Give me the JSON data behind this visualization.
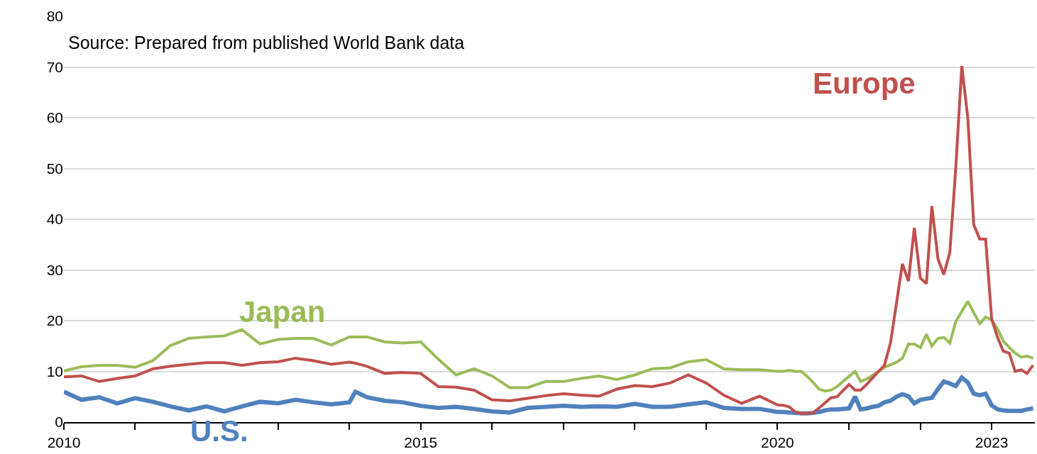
{
  "chart_data": {
    "type": "line",
    "annotations": [
      "Source: Prepared from published World Bank data"
    ],
    "x": [
      "2010-01",
      "2010-04",
      "2010-07",
      "2010-10",
      "2011-01",
      "2011-04",
      "2011-07",
      "2011-10",
      "2012-01",
      "2012-04",
      "2012-07",
      "2012-10",
      "2013-01",
      "2013-04",
      "2013-07",
      "2013-10",
      "2014-01",
      "2014-02",
      "2014-04",
      "2014-07",
      "2014-10",
      "2015-01",
      "2015-04",
      "2015-07",
      "2015-10",
      "2016-01",
      "2016-04",
      "2016-07",
      "2016-10",
      "2017-01",
      "2017-04",
      "2017-07",
      "2017-10",
      "2018-01",
      "2018-04",
      "2018-07",
      "2018-10",
      "2019-01",
      "2019-04",
      "2019-07",
      "2019-10",
      "2020-01",
      "2020-02",
      "2020-03",
      "2020-04",
      "2020-05",
      "2020-06",
      "2020-07",
      "2020-08",
      "2020-09",
      "2020-10",
      "2020-11",
      "2020-12",
      "2021-01",
      "2021-02",
      "2021-03",
      "2021-04",
      "2021-05",
      "2021-06",
      "2021-07",
      "2021-08",
      "2021-09",
      "2021-10",
      "2021-11",
      "2021-12",
      "2022-01",
      "2022-02",
      "2022-03",
      "2022-04",
      "2022-05",
      "2022-06",
      "2022-07",
      "2022-08",
      "2022-09",
      "2022-10",
      "2022-11",
      "2022-12",
      "2023-01",
      "2023-02",
      "2023-03",
      "2023-04",
      "2023-05",
      "2023-06",
      "2023-07",
      "2023-08"
    ],
    "series": [
      {
        "name": "U.S.",
        "color": "#4f81bd",
        "values": [
          6.0,
          4.4,
          4.9,
          3.7,
          4.7,
          4.0,
          3.1,
          2.3,
          3.1,
          2.1,
          3.1,
          4.0,
          3.7,
          4.4,
          3.9,
          3.5,
          3.9,
          6.0,
          4.9,
          4.2,
          3.9,
          3.2,
          2.8,
          3.0,
          2.6,
          2.1,
          1.9,
          2.8,
          3.0,
          3.2,
          3.0,
          3.1,
          3.0,
          3.6,
          3.0,
          3.0,
          3.5,
          3.9,
          2.8,
          2.6,
          2.6,
          2.0,
          2.0,
          1.9,
          1.8,
          1.7,
          1.7,
          1.8,
          2.0,
          2.3,
          2.5,
          2.5,
          2.6,
          2.7,
          5.0,
          2.5,
          2.7,
          3.0,
          3.2,
          3.9,
          4.2,
          5.0,
          5.5,
          5.1,
          3.7,
          4.4,
          4.6,
          4.8,
          6.5,
          8.0,
          7.6,
          7.1,
          8.8,
          7.8,
          5.6,
          5.3,
          5.6,
          3.3,
          2.5,
          2.3,
          2.2,
          2.2,
          2.2,
          2.5,
          2.7
        ]
      },
      {
        "name": "Japan",
        "color": "#9bbb59",
        "values": [
          10.1,
          10.9,
          11.2,
          11.2,
          10.8,
          12.1,
          15.1,
          16.5,
          16.8,
          17.0,
          18.2,
          15.4,
          16.3,
          16.5,
          16.5,
          15.2,
          16.8,
          16.8,
          16.8,
          15.8,
          15.6,
          15.8,
          12.4,
          9.3,
          10.5,
          9.1,
          6.8,
          6.8,
          8.0,
          8.0,
          8.6,
          9.1,
          8.4,
          9.3,
          10.5,
          10.7,
          11.9,
          12.3,
          10.5,
          10.3,
          10.3,
          10.0,
          10.0,
          10.2,
          10.0,
          10.0,
          9.0,
          7.8,
          6.5,
          6.1,
          6.3,
          7.0,
          8.0,
          9.0,
          10.0,
          8.0,
          8.5,
          9.2,
          10.0,
          10.8,
          11.3,
          11.8,
          12.6,
          15.4,
          15.4,
          14.7,
          17.3,
          15.0,
          16.5,
          16.7,
          15.6,
          19.8,
          21.8,
          23.8,
          21.6,
          19.4,
          20.7,
          20.2,
          18.3,
          16.0,
          14.7,
          13.6,
          12.8,
          13.0,
          12.6
        ]
      },
      {
        "name": "Europe",
        "color": "#c0504d",
        "values": [
          8.9,
          9.1,
          8.0,
          8.6,
          9.1,
          10.5,
          11.0,
          11.4,
          11.7,
          11.7,
          11.2,
          11.7,
          11.9,
          12.6,
          12.1,
          11.4,
          11.8,
          11.6,
          11.0,
          9.6,
          9.8,
          9.6,
          7.0,
          6.9,
          6.3,
          4.4,
          4.2,
          4.7,
          5.2,
          5.6,
          5.3,
          5.1,
          6.5,
          7.2,
          7.0,
          7.7,
          9.3,
          7.7,
          5.3,
          3.7,
          5.1,
          3.4,
          3.3,
          3.0,
          2.0,
          1.7,
          1.7,
          1.8,
          2.8,
          3.8,
          4.8,
          5.0,
          6.2,
          7.4,
          6.3,
          6.3,
          7.4,
          8.7,
          10.0,
          11.2,
          15.6,
          23.5,
          31.2,
          27.8,
          38.3,
          28.4,
          27.3,
          42.6,
          32.2,
          29.1,
          33.5,
          50.0,
          70.2,
          59.9,
          38.9,
          36.1,
          36.1,
          20.3,
          16.6,
          14.0,
          13.6,
          10.0,
          10.3,
          9.6,
          11.2
        ]
      }
    ],
    "xlim": [
      "2010-01-01",
      "2023-08-10"
    ],
    "xticks": [
      {
        "value": "2010",
        "label": "2010"
      },
      {
        "value": "2011",
        "label": null
      },
      {
        "value": "2012",
        "label": null
      },
      {
        "value": "2013",
        "label": null
      },
      {
        "value": "2014",
        "label": null
      },
      {
        "value": "2015",
        "label": "2015"
      },
      {
        "value": "2016",
        "label": null
      },
      {
        "value": "2017",
        "label": null
      },
      {
        "value": "2018",
        "label": null
      },
      {
        "value": "2019",
        "label": null
      },
      {
        "value": "2020",
        "label": "2020"
      },
      {
        "value": "2021",
        "label": null
      },
      {
        "value": "2022",
        "label": null
      },
      {
        "value": "2023",
        "label": "2023"
      }
    ],
    "ylim": [
      0,
      80
    ],
    "yticks": [
      0,
      10,
      20,
      30,
      40,
      50,
      60,
      70,
      80
    ],
    "grid": "y",
    "legend": false,
    "marker": "none",
    "line_style": "solid"
  }
}
